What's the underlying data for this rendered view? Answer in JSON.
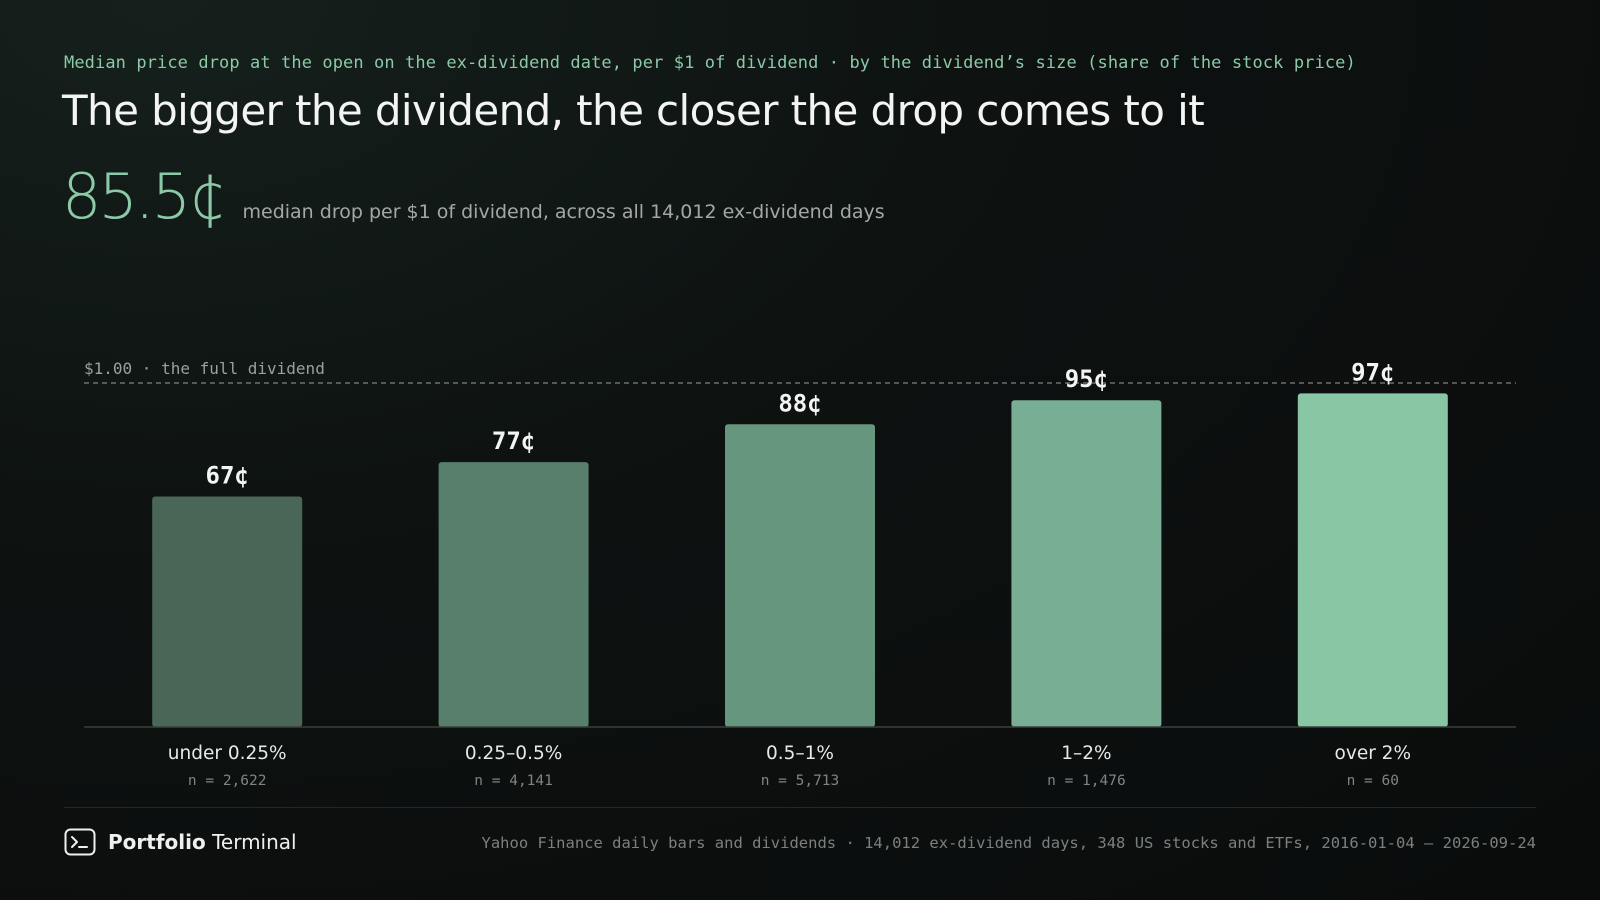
{
  "kicker": "Median price drop at the open on the ex-dividend date, per $1 of dividend · by the dividend’s size (share of the stock price)",
  "title": "The bigger the dividend, the closer the drop comes to it",
  "hero": {
    "value": "85.5¢",
    "caption": "median drop per $1 of dividend, across all 14,012 ex-dividend days"
  },
  "chart_data": {
    "type": "bar",
    "categories": [
      "under 0.25%",
      "0.25–0.5%",
      "0.5–1%",
      "1–2%",
      "over 2%"
    ],
    "values": [
      67,
      77,
      88,
      95,
      97
    ],
    "value_labels": [
      "67¢",
      "77¢",
      "88¢",
      "95¢",
      "97¢"
    ],
    "counts": [
      "n = 2,622",
      "n = 4,141",
      "n = 5,713",
      "n = 1,476",
      "n = 60"
    ],
    "bar_colors": [
      "#4a6656",
      "#587f6b",
      "#66967d",
      "#78ae93",
      "#89c7a4"
    ],
    "reference": {
      "value": 100,
      "label": "$1.00 · the full dividend"
    },
    "ylim": [
      0,
      100
    ],
    "grid": false,
    "xlabel": "",
    "ylabel": ""
  },
  "footer": {
    "brand_bold": "Portfolio",
    "brand_light": "Terminal",
    "source": "Yahoo Finance daily bars and dividends · 14,012 ex-dividend days, 348 US stocks and ETFs, 2016-01-04 – 2026-09-24"
  },
  "colors": {
    "accent": "#8cc9a7",
    "background": "#0c0f0e",
    "text": "#f1f3f1",
    "muted": "#a3a8a5"
  },
  "icons": {
    "brand": "terminal-icon"
  }
}
